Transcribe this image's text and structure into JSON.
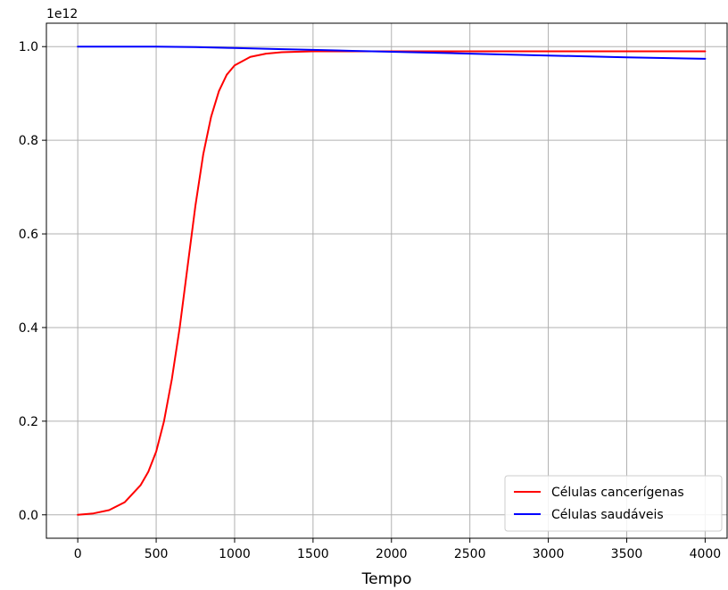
{
  "chart_data": {
    "type": "line",
    "xlabel": "Tempo",
    "ylabel": "",
    "offset_text": "1e12",
    "xlim": [
      -200,
      4140
    ],
    "ylim": [
      -0.05,
      1.05
    ],
    "x_ticks": [
      0,
      500,
      1000,
      1500,
      2000,
      2500,
      3000,
      3500,
      4000
    ],
    "x_tick_labels": [
      "0",
      "500",
      "1000",
      "1500",
      "2000",
      "2500",
      "3000",
      "3500",
      "4000"
    ],
    "y_ticks": [
      0.0,
      0.2,
      0.4,
      0.6,
      0.8,
      1.0
    ],
    "y_tick_labels": [
      "0.0",
      "0.2",
      "0.4",
      "0.6",
      "0.8",
      "1.0"
    ],
    "grid": true,
    "legend_position": "lower-right",
    "series": [
      {
        "name": "Células cancerígenas",
        "color": "#ff0000",
        "x": [
          0,
          100,
          200,
          300,
          400,
          450,
          500,
          550,
          600,
          650,
          700,
          750,
          800,
          850,
          900,
          950,
          1000,
          1100,
          1200,
          1300,
          1400,
          1500,
          1750,
          2000,
          2500,
          3000,
          3500,
          4000
        ],
        "y": [
          0.0,
          0.003,
          0.01,
          0.027,
          0.063,
          0.092,
          0.135,
          0.2,
          0.29,
          0.4,
          0.53,
          0.66,
          0.77,
          0.85,
          0.905,
          0.94,
          0.96,
          0.978,
          0.985,
          0.988,
          0.989,
          0.99,
          0.99,
          0.99,
          0.99,
          0.99,
          0.99,
          0.99
        ]
      },
      {
        "name": "Células saudáveis",
        "color": "#0000ff",
        "x": [
          0,
          250,
          500,
          750,
          1000,
          1250,
          1500,
          1750,
          2000,
          2500,
          3000,
          3500,
          4000
        ],
        "y": [
          1.0,
          1.0,
          1.0,
          0.999,
          0.997,
          0.995,
          0.993,
          0.991,
          0.989,
          0.985,
          0.981,
          0.977,
          0.974
        ]
      }
    ]
  }
}
